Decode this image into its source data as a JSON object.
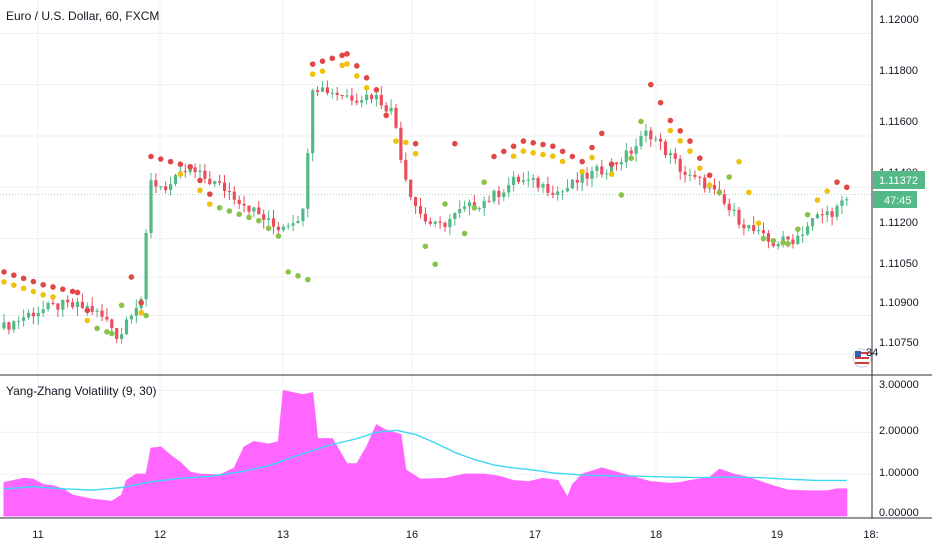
{
  "colors": {
    "up": "#53b987",
    "down": "#eb4d5c",
    "dot_red": "#e04848",
    "dot_yellow": "#f0c20c",
    "dot_green": "#8bc34a",
    "vol_fill": "#ff66ff",
    "vol_line": "#3dd9f0",
    "grid": "#eef0f4",
    "price_tag": "#53b987"
  },
  "header": {
    "main_title": "Euro / U.S. Dollar, 60, FXCM",
    "indicator_title": "Yang-Zhang Volatility (9, 30)"
  },
  "price_axis": {
    "ticks": [
      "1.12000",
      "1.11800",
      "1.11600",
      "1.11400",
      "1.11200",
      "1.11050",
      "1.10900",
      "1.10750"
    ],
    "current_price": "1.11372",
    "countdown": "47:45"
  },
  "indicator_axis": {
    "ticks": [
      "3.00000",
      "2.00000",
      "1.00000",
      "0.00000"
    ]
  },
  "time_axis": {
    "labels": [
      "11",
      "12",
      "13",
      "16",
      "17",
      "18",
      "19",
      "18:"
    ]
  },
  "flag_badge": {
    "text": "34",
    "icon": "us-flag-icon"
  },
  "chart_data": [
    {
      "type": "candlestick",
      "title": "Euro / U.S. Dollar, 60, FXCM",
      "ylim": [
        1.1068,
        1.1213
      ],
      "price_anchors": [
        [
          0,
          1.1085
        ],
        [
          6,
          1.1091
        ],
        [
          12,
          1.1094
        ],
        [
          18,
          1.1093
        ],
        [
          22,
          1.1087
        ],
        [
          24,
          1.1081
        ],
        [
          26,
          1.1091
        ],
        [
          29,
          1.1098
        ],
        [
          30,
          1.1142
        ],
        [
          34,
          1.114
        ],
        [
          38,
          1.1147
        ],
        [
          42,
          1.1143
        ],
        [
          46,
          1.1139
        ],
        [
          52,
          1.113
        ],
        [
          56,
          1.1124
        ],
        [
          60,
          1.1128
        ],
        [
          62,
          1.1131
        ],
        [
          63,
          1.118
        ],
        [
          68,
          1.1177
        ],
        [
          72,
          1.1175
        ],
        [
          76,
          1.1176
        ],
        [
          80,
          1.1169
        ],
        [
          82,
          1.1147
        ],
        [
          84,
          1.1135
        ],
        [
          86,
          1.1128
        ],
        [
          89,
          1.1124
        ],
        [
          94,
          1.1131
        ],
        [
          100,
          1.1136
        ],
        [
          105,
          1.1143
        ],
        [
          110,
          1.1141
        ],
        [
          114,
          1.1138
        ],
        [
          119,
          1.1144
        ],
        [
          124,
          1.1148
        ],
        [
          128,
          1.1153
        ],
        [
          132,
          1.1162
        ],
        [
          136,
          1.1153
        ],
        [
          140,
          1.1144
        ],
        [
          144,
          1.1141
        ],
        [
          148,
          1.1132
        ],
        [
          152,
          1.1125
        ],
        [
          157,
          1.1118
        ],
        [
          162,
          1.112
        ],
        [
          166,
          1.1128
        ],
        [
          170,
          1.1131
        ],
        [
          172,
          1.1134
        ]
      ],
      "dot_anchors": [
        [
          0,
          1,
          1.1107
        ],
        [
          8,
          1,
          1.1102
        ],
        [
          15,
          1,
          1.1099
        ],
        [
          19,
          0,
          1.1085
        ],
        [
          22,
          0,
          1.1083
        ],
        [
          26,
          1,
          1.1105
        ],
        [
          29,
          0,
          1.109
        ],
        [
          30,
          1,
          1.1152
        ],
        [
          38,
          1,
          1.1148
        ],
        [
          44,
          0,
          1.1132
        ],
        [
          52,
          0,
          1.1127
        ],
        [
          56,
          0,
          1.1121
        ],
        [
          58,
          0,
          1.1107
        ],
        [
          62,
          0,
          1.1104
        ],
        [
          63,
          1,
          1.1188
        ],
        [
          70,
          1,
          1.1192
        ],
        [
          76,
          1,
          1.1178
        ],
        [
          80,
          2,
          1.1158
        ],
        [
          84,
          1,
          1.1157
        ],
        [
          86,
          0,
          1.1117
        ],
        [
          88,
          0,
          1.111
        ],
        [
          92,
          1,
          1.1157
        ],
        [
          94,
          0,
          1.1122
        ],
        [
          100,
          1,
          1.1152
        ],
        [
          106,
          1,
          1.1158
        ],
        [
          112,
          1,
          1.1156
        ],
        [
          118,
          1,
          1.115
        ],
        [
          122,
          1,
          1.1161
        ],
        [
          126,
          0,
          1.1137
        ],
        [
          132,
          1,
          1.118
        ],
        [
          136,
          1,
          1.1166
        ],
        [
          140,
          1,
          1.1158
        ],
        [
          146,
          0,
          1.1138
        ],
        [
          150,
          2,
          1.115
        ],
        [
          155,
          0,
          1.112
        ],
        [
          160,
          0,
          1.1118
        ],
        [
          166,
          2,
          1.1135
        ],
        [
          170,
          1,
          1.1142
        ],
        [
          172,
          1,
          1.114
        ]
      ]
    },
    {
      "type": "area",
      "title": "Yang-Zhang Volatility (9, 30)",
      "ylim": [
        0,
        3.3
      ],
      "x_count": 173,
      "volatility": [
        [
          0,
          0.8
        ],
        [
          4,
          0.9
        ],
        [
          6,
          0.88
        ],
        [
          8,
          0.75
        ],
        [
          10,
          0.72
        ],
        [
          12,
          0.65
        ],
        [
          14,
          0.5
        ],
        [
          18,
          0.4
        ],
        [
          20,
          0.38
        ],
        [
          22,
          0.35
        ],
        [
          24,
          0.5
        ],
        [
          25,
          0.85
        ],
        [
          27,
          1.0
        ],
        [
          29,
          1.0
        ],
        [
          30,
          1.62
        ],
        [
          32,
          1.65
        ],
        [
          34,
          1.45
        ],
        [
          36,
          1.28
        ],
        [
          38,
          1.05
        ],
        [
          40,
          1.0
        ],
        [
          44,
          0.98
        ],
        [
          47,
          1.15
        ],
        [
          49,
          1.65
        ],
        [
          51,
          1.78
        ],
        [
          54,
          1.72
        ],
        [
          56,
          1.78
        ],
        [
          57,
          3.0
        ],
        [
          61,
          2.9
        ],
        [
          63,
          2.95
        ],
        [
          64,
          1.85
        ],
        [
          67,
          1.85
        ],
        [
          70,
          1.25
        ],
        [
          72,
          1.25
        ],
        [
          74,
          1.65
        ],
        [
          76,
          2.18
        ],
        [
          78,
          2.05
        ],
        [
          81,
          1.95
        ],
        [
          82,
          1.1
        ],
        [
          85,
          0.88
        ],
        [
          90,
          0.9
        ],
        [
          94,
          1.0
        ],
        [
          98,
          1.0
        ],
        [
          101,
          0.95
        ],
        [
          104,
          0.85
        ],
        [
          107,
          0.82
        ],
        [
          110,
          0.9
        ],
        [
          113,
          0.85
        ],
        [
          115,
          0.45
        ],
        [
          116,
          0.75
        ],
        [
          118,
          1.0
        ],
        [
          122,
          1.15
        ],
        [
          125,
          1.05
        ],
        [
          128,
          0.95
        ],
        [
          132,
          0.82
        ],
        [
          136,
          0.78
        ],
        [
          138,
          0.8
        ],
        [
          140,
          0.85
        ],
        [
          144,
          0.92
        ],
        [
          146,
          1.12
        ],
        [
          149,
          1.0
        ],
        [
          152,
          0.92
        ],
        [
          155,
          0.8
        ],
        [
          157,
          0.72
        ],
        [
          160,
          0.62
        ],
        [
          164,
          0.6
        ],
        [
          168,
          0.6
        ],
        [
          170,
          0.65
        ]
      ],
      "signal": [
        [
          0,
          0.65
        ],
        [
          6,
          0.7
        ],
        [
          12,
          0.65
        ],
        [
          18,
          0.62
        ],
        [
          24,
          0.68
        ],
        [
          30,
          0.82
        ],
        [
          36,
          0.9
        ],
        [
          42,
          0.95
        ],
        [
          48,
          1.05
        ],
        [
          54,
          1.2
        ],
        [
          60,
          1.45
        ],
        [
          66,
          1.68
        ],
        [
          72,
          1.85
        ],
        [
          76,
          2.0
        ],
        [
          80,
          2.05
        ],
        [
          84,
          1.95
        ],
        [
          88,
          1.75
        ],
        [
          92,
          1.52
        ],
        [
          96,
          1.35
        ],
        [
          100,
          1.22
        ],
        [
          104,
          1.15
        ],
        [
          108,
          1.1
        ],
        [
          112,
          1.03
        ],
        [
          118,
          0.98
        ],
        [
          124,
          0.96
        ],
        [
          130,
          0.95
        ],
        [
          136,
          0.93
        ],
        [
          142,
          0.92
        ],
        [
          148,
          0.93
        ],
        [
          154,
          0.92
        ],
        [
          160,
          0.88
        ],
        [
          166,
          0.85
        ],
        [
          170,
          0.85
        ]
      ]
    }
  ]
}
